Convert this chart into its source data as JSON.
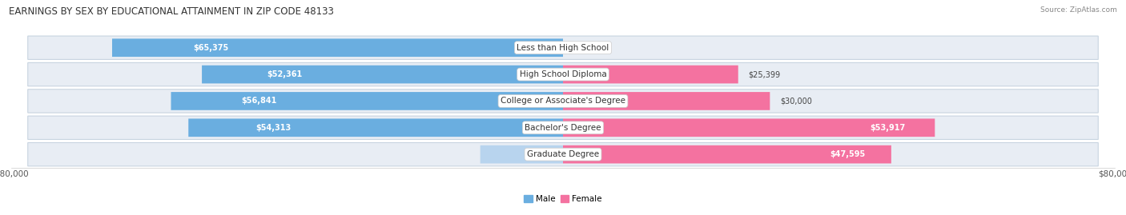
{
  "title": "EARNINGS BY SEX BY EDUCATIONAL ATTAINMENT IN ZIP CODE 48133",
  "source": "Source: ZipAtlas.com",
  "categories": [
    "Less than High School",
    "High School Diploma",
    "College or Associate's Degree",
    "Bachelor's Degree",
    "Graduate Degree"
  ],
  "male_values": [
    65375,
    52361,
    56841,
    54313,
    0
  ],
  "female_values": [
    0,
    25399,
    30000,
    53917,
    47595
  ],
  "male_color": "#6AAEE0",
  "male_color_light": "#B8D4EE",
  "female_color": "#F472A0",
  "row_bg_color": "#E8EDF4",
  "max_value": 80000,
  "legend_male": "Male",
  "legend_female": "Female",
  "title_fontsize": 8.5,
  "source_fontsize": 6.5,
  "label_fontsize": 7.5,
  "category_fontsize": 7.5,
  "value_fontsize": 7.0
}
